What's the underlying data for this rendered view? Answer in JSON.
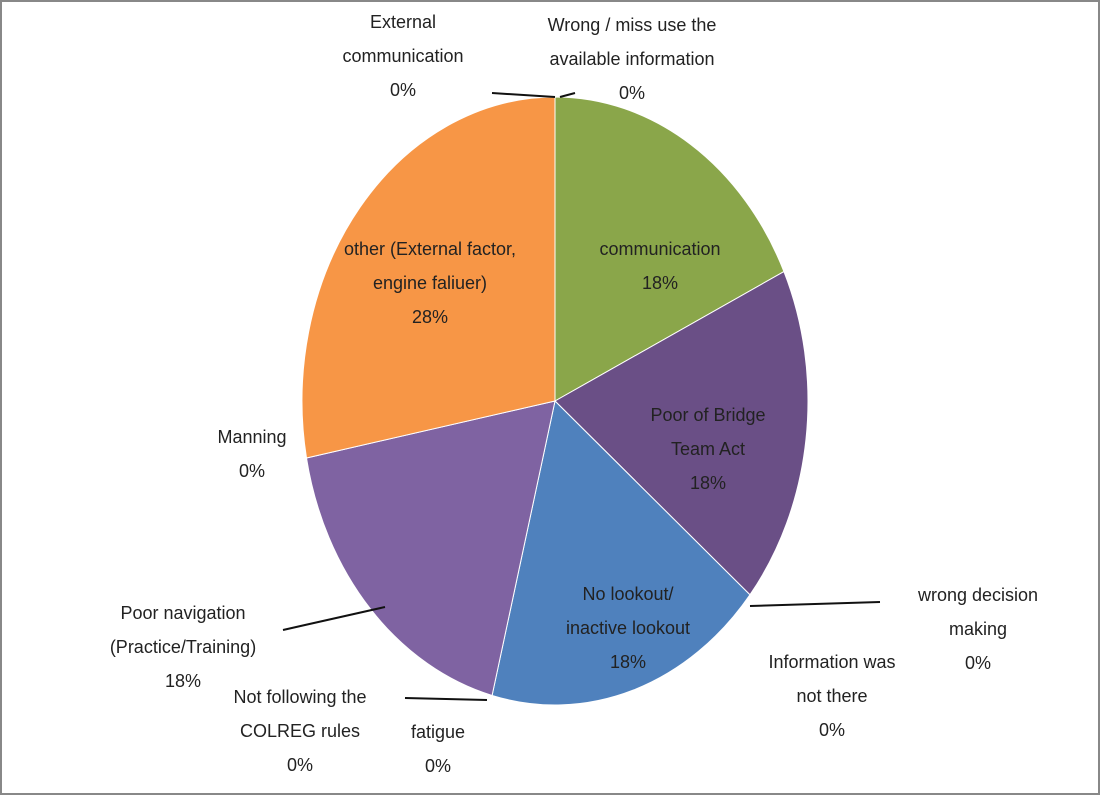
{
  "chart_data": {
    "type": "pie",
    "categories": [
      "Wrong / miss use the available information",
      "communication",
      "Poor of Bridge Team Act",
      "wrong decision making",
      "Information was not there",
      "No lookout/ inactive lookout",
      "fatigue",
      "Not following the COLREG rules",
      "Poor navigation (Practice/Training)",
      "Manning",
      "other (External factor, engine faliuer)",
      "External communication"
    ],
    "values": [
      0,
      18,
      18,
      0,
      0,
      18,
      0,
      0,
      18,
      0,
      28,
      0
    ],
    "value_labels": [
      "0%",
      "18%",
      "18%",
      "0%",
      "0%",
      "18%",
      "0%",
      "0%",
      "18%",
      "0%",
      "28%",
      "0%"
    ],
    "colors": [
      "#4f81bd",
      "#8aa64a",
      "#6a4f86",
      "#4bacc6",
      "#c0504d",
      "#4f81bd",
      "#9bbb59",
      "#f79646",
      "#7f63a2",
      "#4bacc6",
      "#f79646",
      "#c0504d"
    ]
  }
}
